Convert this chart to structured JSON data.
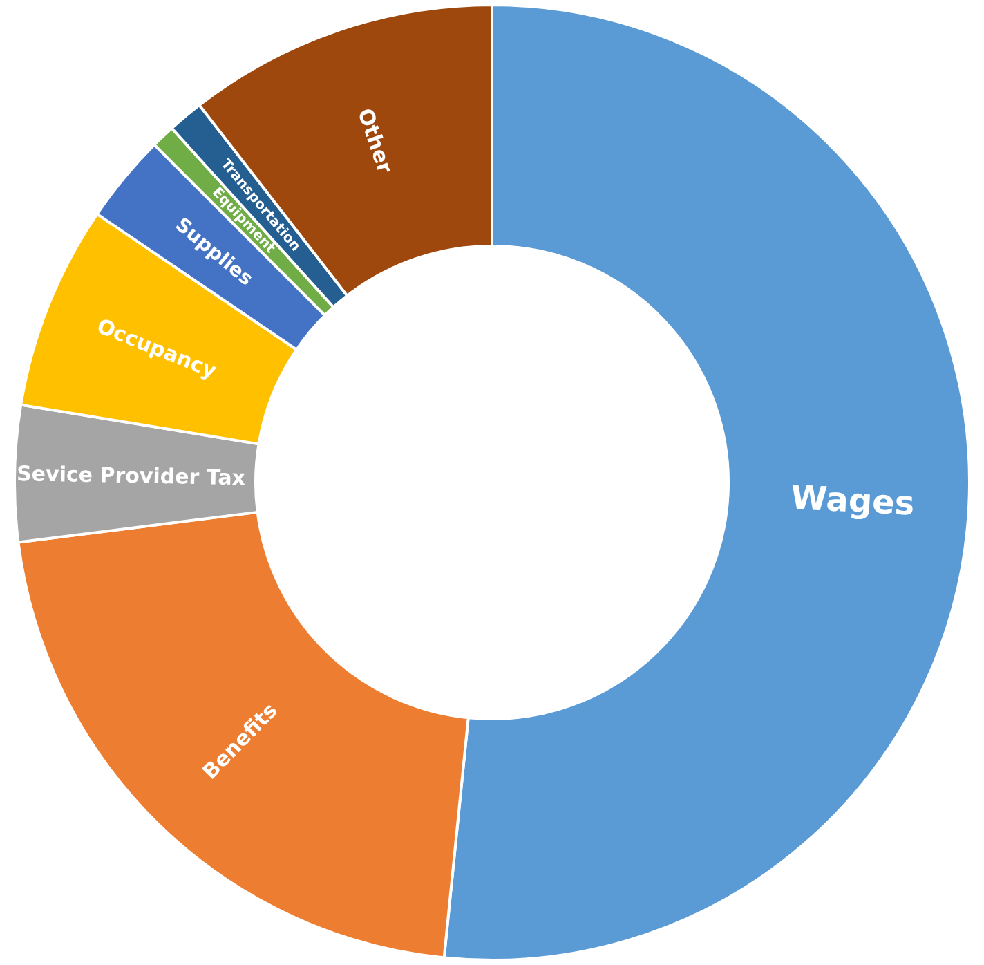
{
  "chart_data": {
    "type": "donut",
    "categories": [
      "Wages",
      "Benefits",
      "Sevice Provider Tax",
      "Occupancy",
      "Supplies",
      "Equipment",
      "Transportation",
      "Other"
    ],
    "values": [
      51.6,
      21.4,
      4.6,
      6.9,
      3.0,
      0.8,
      1.2,
      10.5
    ],
    "colors": [
      "#5b9bd5",
      "#ed7d31",
      "#a5a5a5",
      "#ffc000",
      "#4472c4",
      "#70ad47",
      "#255e91",
      "#9e480e"
    ],
    "legend": false
  }
}
